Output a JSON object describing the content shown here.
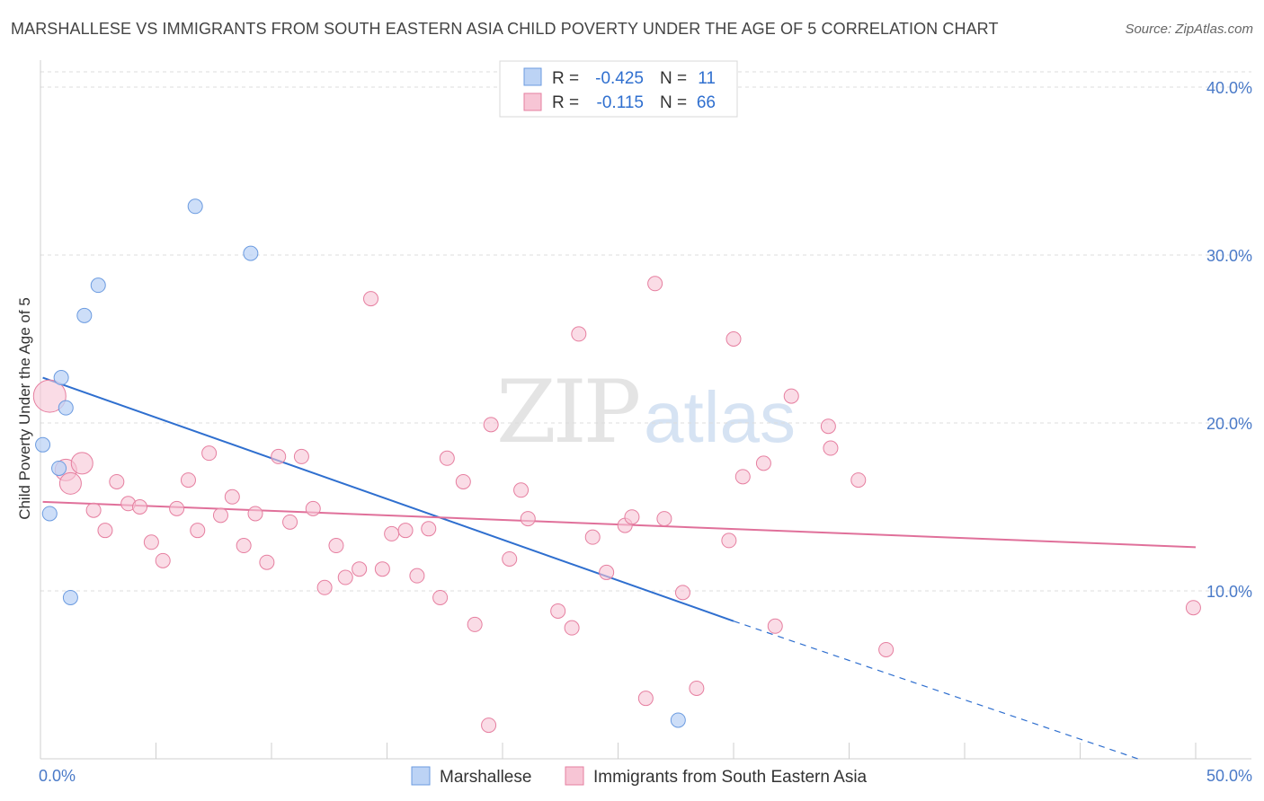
{
  "title": "MARSHALLESE VS IMMIGRANTS FROM SOUTH EASTERN ASIA CHILD POVERTY UNDER THE AGE OF 5 CORRELATION CHART",
  "source": "Source: ZipAtlas.com",
  "watermark": "ZIPatlas",
  "legend_top": {
    "r_label": "R =",
    "n_label": "N =",
    "rows": [
      {
        "r": "-0.425",
        "n": "11"
      },
      {
        "r": "-0.115",
        "n": "66"
      }
    ]
  },
  "chart_data": {
    "type": "scatter",
    "ylabel": "Child Poverty Under the Age of 5",
    "xlim": [
      0,
      50
    ],
    "ylim": [
      0,
      40
    ],
    "x_tick_labels": [
      "0.0%",
      "50.0%"
    ],
    "y_ticks": [
      10,
      20,
      30,
      40
    ],
    "y_tick_labels": [
      "10.0%",
      "20.0%",
      "30.0%",
      "40.0%"
    ],
    "grid": "horizontal dashed",
    "colors": {
      "series1": "#6b9be0",
      "series1_fill": "#bcd3f5",
      "series2": "#e67fa0",
      "series2_fill": "#f7c5d5",
      "line1": "#2f6fcf",
      "line2": "#e0709a"
    },
    "series": [
      {
        "name": "Marshallese",
        "r": -0.425,
        "n": 11,
        "points": [
          {
            "x": 0.1,
            "y": 18.7
          },
          {
            "x": 0.4,
            "y": 14.6
          },
          {
            "x": 0.8,
            "y": 17.3
          },
          {
            "x": 0.9,
            "y": 22.7
          },
          {
            "x": 1.1,
            "y": 20.9
          },
          {
            "x": 1.3,
            "y": 9.6
          },
          {
            "x": 1.9,
            "y": 26.4
          },
          {
            "x": 2.5,
            "y": 28.2
          },
          {
            "x": 6.7,
            "y": 32.9
          },
          {
            "x": 9.1,
            "y": 30.1
          },
          {
            "x": 27.6,
            "y": 2.3
          }
        ],
        "trend": {
          "x0": 0.1,
          "y0": 22.7,
          "x1": 30.0,
          "y1": 8.2,
          "dash_to_x": 47.5,
          "dash_to_y": 0.0
        }
      },
      {
        "name": "Immigrants from South Eastern Asia",
        "r": -0.115,
        "n": 66,
        "points": [
          {
            "x": 0.4,
            "y": 21.6
          },
          {
            "x": 1.1,
            "y": 17.2
          },
          {
            "x": 1.3,
            "y": 16.4
          },
          {
            "x": 1.8,
            "y": 17.6
          },
          {
            "x": 2.3,
            "y": 14.8
          },
          {
            "x": 2.8,
            "y": 13.6
          },
          {
            "x": 3.3,
            "y": 16.5
          },
          {
            "x": 3.8,
            "y": 15.2
          },
          {
            "x": 4.3,
            "y": 15.0
          },
          {
            "x": 4.8,
            "y": 12.9
          },
          {
            "x": 5.3,
            "y": 11.8
          },
          {
            "x": 5.9,
            "y": 14.9
          },
          {
            "x": 6.4,
            "y": 16.6
          },
          {
            "x": 6.8,
            "y": 13.6
          },
          {
            "x": 7.3,
            "y": 18.2
          },
          {
            "x": 7.8,
            "y": 14.5
          },
          {
            "x": 8.3,
            "y": 15.6
          },
          {
            "x": 8.8,
            "y": 12.7
          },
          {
            "x": 9.3,
            "y": 14.6
          },
          {
            "x": 9.8,
            "y": 11.7
          },
          {
            "x": 10.3,
            "y": 18.0
          },
          {
            "x": 10.8,
            "y": 14.1
          },
          {
            "x": 11.3,
            "y": 18.0
          },
          {
            "x": 11.8,
            "y": 14.9
          },
          {
            "x": 12.3,
            "y": 10.2
          },
          {
            "x": 12.8,
            "y": 12.7
          },
          {
            "x": 13.2,
            "y": 10.8
          },
          {
            "x": 13.8,
            "y": 11.3
          },
          {
            "x": 14.3,
            "y": 27.4
          },
          {
            "x": 14.8,
            "y": 11.3
          },
          {
            "x": 15.2,
            "y": 13.4
          },
          {
            "x": 15.8,
            "y": 13.6
          },
          {
            "x": 16.3,
            "y": 10.9
          },
          {
            "x": 16.8,
            "y": 13.7
          },
          {
            "x": 17.3,
            "y": 9.6
          },
          {
            "x": 17.6,
            "y": 17.9
          },
          {
            "x": 18.3,
            "y": 16.5
          },
          {
            "x": 18.8,
            "y": 8.0
          },
          {
            "x": 19.5,
            "y": 19.9
          },
          {
            "x": 20.3,
            "y": 11.9
          },
          {
            "x": 20.8,
            "y": 16.0
          },
          {
            "x": 21.1,
            "y": 14.3
          },
          {
            "x": 22.4,
            "y": 8.8
          },
          {
            "x": 23.0,
            "y": 7.8
          },
          {
            "x": 23.3,
            "y": 25.3
          },
          {
            "x": 23.9,
            "y": 13.2
          },
          {
            "x": 24.5,
            "y": 11.1
          },
          {
            "x": 25.3,
            "y": 13.9
          },
          {
            "x": 25.6,
            "y": 14.4
          },
          {
            "x": 26.2,
            "y": 3.6
          },
          {
            "x": 26.6,
            "y": 28.3
          },
          {
            "x": 27.0,
            "y": 14.3
          },
          {
            "x": 27.8,
            "y": 9.9
          },
          {
            "x": 28.4,
            "y": 4.2
          },
          {
            "x": 29.8,
            "y": 13.0
          },
          {
            "x": 30.0,
            "y": 25.0
          },
          {
            "x": 30.4,
            "y": 16.8
          },
          {
            "x": 31.3,
            "y": 17.6
          },
          {
            "x": 31.8,
            "y": 7.9
          },
          {
            "x": 32.5,
            "y": 21.6
          },
          {
            "x": 34.1,
            "y": 19.8
          },
          {
            "x": 34.2,
            "y": 18.5
          },
          {
            "x": 35.4,
            "y": 16.6
          },
          {
            "x": 36.6,
            "y": 6.5
          },
          {
            "x": 19.4,
            "y": 2.0
          },
          {
            "x": 49.9,
            "y": 9.0
          }
        ],
        "trend": {
          "x0": 0.1,
          "y0": 15.3,
          "x1": 50.0,
          "y1": 12.6
        }
      }
    ]
  }
}
